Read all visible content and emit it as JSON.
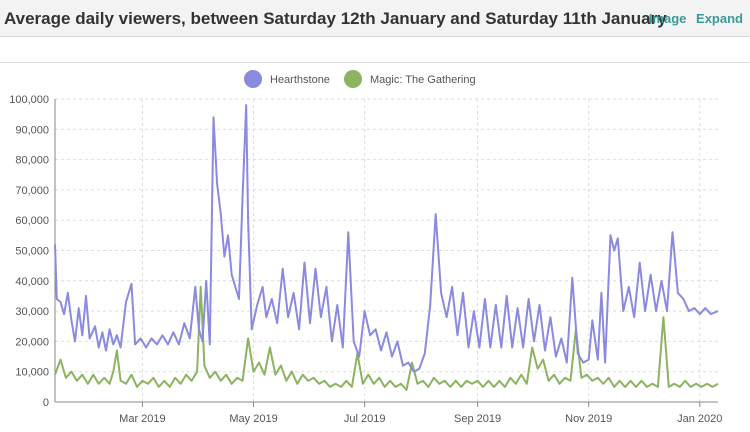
{
  "header": {
    "title": "Average daily viewers, between Saturday 12th January and Saturday 11th January",
    "image_link": "Image",
    "expand_link": "Expand"
  },
  "colors": {
    "hearthstone": "#8a8ade",
    "magic": "#8cb360",
    "grid": "#dddddd",
    "axis": "#888888"
  },
  "chart_data": {
    "type": "line",
    "title": "",
    "xlabel": "",
    "ylabel": "",
    "ylim": [
      0,
      100000
    ],
    "xlim": [
      "2019-01-12",
      "2020-01-11"
    ],
    "y_ticks": [
      0,
      10000,
      20000,
      30000,
      40000,
      50000,
      60000,
      70000,
      80000,
      90000,
      100000
    ],
    "y_tick_labels": [
      "0",
      "10,000",
      "20,000",
      "30,000",
      "40,000",
      "50,000",
      "60,000",
      "70,000",
      "80,000",
      "90,000",
      "100,000"
    ],
    "x_ticks": [
      "2019-03-01",
      "2019-05-01",
      "2019-07-01",
      "2019-09-01",
      "2019-11-01",
      "2020-01-01"
    ],
    "x_tick_labels": [
      "Mar 2019",
      "May 2019",
      "Jul 2019",
      "Sep 2019",
      "Nov 2019",
      "Jan 2020"
    ],
    "grid": true,
    "legend_position": "top-center",
    "series": [
      {
        "name": "Hearthstone",
        "points": [
          [
            "2019-01-12",
            52000
          ],
          [
            "2019-01-13",
            34000
          ],
          [
            "2019-01-15",
            33000
          ],
          [
            "2019-01-17",
            29000
          ],
          [
            "2019-01-19",
            36000
          ],
          [
            "2019-01-21",
            27000
          ],
          [
            "2019-01-23",
            20000
          ],
          [
            "2019-01-25",
            31000
          ],
          [
            "2019-01-27",
            22000
          ],
          [
            "2019-01-29",
            35000
          ],
          [
            "2019-01-31",
            21000
          ],
          [
            "2019-02-03",
            25000
          ],
          [
            "2019-02-05",
            18000
          ],
          [
            "2019-02-07",
            23000
          ],
          [
            "2019-02-09",
            17000
          ],
          [
            "2019-02-11",
            24000
          ],
          [
            "2019-02-13",
            19000
          ],
          [
            "2019-02-15",
            22000
          ],
          [
            "2019-02-17",
            18000
          ],
          [
            "2019-02-20",
            33000
          ],
          [
            "2019-02-23",
            39000
          ],
          [
            "2019-02-25",
            19000
          ],
          [
            "2019-02-28",
            21000
          ],
          [
            "2019-03-03",
            18000
          ],
          [
            "2019-03-06",
            21000
          ],
          [
            "2019-03-09",
            19000
          ],
          [
            "2019-03-12",
            22000
          ],
          [
            "2019-03-15",
            19000
          ],
          [
            "2019-03-18",
            23000
          ],
          [
            "2019-03-21",
            19000
          ],
          [
            "2019-03-24",
            26000
          ],
          [
            "2019-03-27",
            21000
          ],
          [
            "2019-03-30",
            38000
          ],
          [
            "2019-04-01",
            24000
          ],
          [
            "2019-04-03",
            20000
          ],
          [
            "2019-04-05",
            40000
          ],
          [
            "2019-04-07",
            19000
          ],
          [
            "2019-04-09",
            94000
          ],
          [
            "2019-04-11",
            72000
          ],
          [
            "2019-04-13",
            62000
          ],
          [
            "2019-04-15",
            48000
          ],
          [
            "2019-04-17",
            55000
          ],
          [
            "2019-04-19",
            42000
          ],
          [
            "2019-04-21",
            38000
          ],
          [
            "2019-04-23",
            34000
          ],
          [
            "2019-04-25",
            68000
          ],
          [
            "2019-04-27",
            98000
          ],
          [
            "2019-04-28",
            60000
          ],
          [
            "2019-04-30",
            24000
          ],
          [
            "2019-05-03",
            32000
          ],
          [
            "2019-05-06",
            38000
          ],
          [
            "2019-05-08",
            28000
          ],
          [
            "2019-05-11",
            34000
          ],
          [
            "2019-05-14",
            26000
          ],
          [
            "2019-05-17",
            44000
          ],
          [
            "2019-05-20",
            28000
          ],
          [
            "2019-05-23",
            36000
          ],
          [
            "2019-05-26",
            24000
          ],
          [
            "2019-05-29",
            46000
          ],
          [
            "2019-06-01",
            26000
          ],
          [
            "2019-06-04",
            44000
          ],
          [
            "2019-06-07",
            28000
          ],
          [
            "2019-06-10",
            38000
          ],
          [
            "2019-06-13",
            20000
          ],
          [
            "2019-06-16",
            32000
          ],
          [
            "2019-06-19",
            18000
          ],
          [
            "2019-06-22",
            56000
          ],
          [
            "2019-06-25",
            20000
          ],
          [
            "2019-06-28",
            15000
          ],
          [
            "2019-07-01",
            30000
          ],
          [
            "2019-07-04",
            22000
          ],
          [
            "2019-07-07",
            24000
          ],
          [
            "2019-07-10",
            17000
          ],
          [
            "2019-07-13",
            23000
          ],
          [
            "2019-07-16",
            15000
          ],
          [
            "2019-07-19",
            20000
          ],
          [
            "2019-07-22",
            12000
          ],
          [
            "2019-07-25",
            13000
          ],
          [
            "2019-07-28",
            10000
          ],
          [
            "2019-07-31",
            11000
          ],
          [
            "2019-08-03",
            16000
          ],
          [
            "2019-08-06",
            32000
          ],
          [
            "2019-08-09",
            62000
          ],
          [
            "2019-08-12",
            36000
          ],
          [
            "2019-08-15",
            28000
          ],
          [
            "2019-08-18",
            38000
          ],
          [
            "2019-08-21",
            22000
          ],
          [
            "2019-08-24",
            36000
          ],
          [
            "2019-08-27",
            18000
          ],
          [
            "2019-08-30",
            30000
          ],
          [
            "2019-09-02",
            18000
          ],
          [
            "2019-09-05",
            34000
          ],
          [
            "2019-09-08",
            18000
          ],
          [
            "2019-09-11",
            32000
          ],
          [
            "2019-09-14",
            18000
          ],
          [
            "2019-09-17",
            35000
          ],
          [
            "2019-09-20",
            18000
          ],
          [
            "2019-09-23",
            31000
          ],
          [
            "2019-09-26",
            18000
          ],
          [
            "2019-09-29",
            34000
          ],
          [
            "2019-10-02",
            20000
          ],
          [
            "2019-10-05",
            32000
          ],
          [
            "2019-10-08",
            17000
          ],
          [
            "2019-10-11",
            28000
          ],
          [
            "2019-10-14",
            15000
          ],
          [
            "2019-10-17",
            21000
          ],
          [
            "2019-10-20",
            13000
          ],
          [
            "2019-10-23",
            41000
          ],
          [
            "2019-10-26",
            16000
          ],
          [
            "2019-10-29",
            13000
          ],
          [
            "2019-11-01",
            14000
          ],
          [
            "2019-11-03",
            27000
          ],
          [
            "2019-11-06",
            14000
          ],
          [
            "2019-11-08",
            36000
          ],
          [
            "2019-11-10",
            13000
          ],
          [
            "2019-11-13",
            55000
          ],
          [
            "2019-11-15",
            50000
          ],
          [
            "2019-11-17",
            54000
          ],
          [
            "2019-11-20",
            30000
          ],
          [
            "2019-11-23",
            38000
          ],
          [
            "2019-11-26",
            28000
          ],
          [
            "2019-11-29",
            46000
          ],
          [
            "2019-12-02",
            30000
          ],
          [
            "2019-12-05",
            42000
          ],
          [
            "2019-12-08",
            30000
          ],
          [
            "2019-12-11",
            40000
          ],
          [
            "2019-12-14",
            30000
          ],
          [
            "2019-12-17",
            56000
          ],
          [
            "2019-12-20",
            36000
          ],
          [
            "2019-12-23",
            34000
          ],
          [
            "2019-12-26",
            30000
          ],
          [
            "2019-12-29",
            31000
          ],
          [
            "2020-01-01",
            29000
          ],
          [
            "2020-01-04",
            31000
          ],
          [
            "2020-01-07",
            29000
          ],
          [
            "2020-01-11",
            30000
          ]
        ]
      },
      {
        "name": "Magic: The Gathering",
        "points": [
          [
            "2019-01-12",
            9000
          ],
          [
            "2019-01-15",
            14000
          ],
          [
            "2019-01-18",
            8000
          ],
          [
            "2019-01-21",
            10000
          ],
          [
            "2019-01-24",
            7000
          ],
          [
            "2019-01-27",
            9000
          ],
          [
            "2019-01-30",
            6000
          ],
          [
            "2019-02-02",
            9000
          ],
          [
            "2019-02-05",
            6000
          ],
          [
            "2019-02-08",
            8000
          ],
          [
            "2019-02-11",
            6000
          ],
          [
            "2019-02-13",
            10000
          ],
          [
            "2019-02-15",
            17000
          ],
          [
            "2019-02-17",
            7000
          ],
          [
            "2019-02-20",
            6000
          ],
          [
            "2019-02-23",
            9000
          ],
          [
            "2019-02-26",
            5000
          ],
          [
            "2019-03-01",
            7000
          ],
          [
            "2019-03-04",
            6000
          ],
          [
            "2019-03-07",
            8000
          ],
          [
            "2019-03-10",
            5000
          ],
          [
            "2019-03-13",
            7000
          ],
          [
            "2019-03-16",
            5000
          ],
          [
            "2019-03-19",
            8000
          ],
          [
            "2019-03-22",
            6000
          ],
          [
            "2019-03-25",
            9000
          ],
          [
            "2019-03-28",
            7000
          ],
          [
            "2019-03-31",
            10000
          ],
          [
            "2019-04-02",
            38000
          ],
          [
            "2019-04-04",
            12000
          ],
          [
            "2019-04-07",
            8000
          ],
          [
            "2019-04-10",
            10000
          ],
          [
            "2019-04-13",
            7000
          ],
          [
            "2019-04-16",
            9000
          ],
          [
            "2019-04-19",
            6000
          ],
          [
            "2019-04-22",
            8000
          ],
          [
            "2019-04-25",
            7000
          ],
          [
            "2019-04-28",
            21000
          ],
          [
            "2019-05-01",
            10000
          ],
          [
            "2019-05-04",
            13000
          ],
          [
            "2019-05-07",
            9000
          ],
          [
            "2019-05-10",
            18000
          ],
          [
            "2019-05-13",
            9000
          ],
          [
            "2019-05-16",
            12000
          ],
          [
            "2019-05-19",
            7000
          ],
          [
            "2019-05-22",
            10000
          ],
          [
            "2019-05-25",
            6000
          ],
          [
            "2019-05-28",
            9000
          ],
          [
            "2019-05-31",
            7000
          ],
          [
            "2019-06-03",
            8000
          ],
          [
            "2019-06-06",
            6000
          ],
          [
            "2019-06-09",
            7000
          ],
          [
            "2019-06-12",
            5000
          ],
          [
            "2019-06-15",
            6000
          ],
          [
            "2019-06-18",
            5000
          ],
          [
            "2019-06-21",
            7000
          ],
          [
            "2019-06-24",
            5000
          ],
          [
            "2019-06-27",
            16000
          ],
          [
            "2019-06-30",
            6000
          ],
          [
            "2019-07-03",
            9000
          ],
          [
            "2019-07-06",
            6000
          ],
          [
            "2019-07-09",
            8000
          ],
          [
            "2019-07-12",
            5000
          ],
          [
            "2019-07-15",
            7000
          ],
          [
            "2019-07-18",
            5000
          ],
          [
            "2019-07-21",
            6000
          ],
          [
            "2019-07-24",
            4000
          ],
          [
            "2019-07-27",
            13000
          ],
          [
            "2019-07-30",
            6000
          ],
          [
            "2019-08-02",
            7000
          ],
          [
            "2019-08-05",
            5000
          ],
          [
            "2019-08-08",
            8000
          ],
          [
            "2019-08-11",
            6000
          ],
          [
            "2019-08-14",
            7000
          ],
          [
            "2019-08-17",
            5000
          ],
          [
            "2019-08-20",
            7000
          ],
          [
            "2019-08-23",
            5000
          ],
          [
            "2019-08-26",
            7000
          ],
          [
            "2019-08-29",
            6000
          ],
          [
            "2019-09-01",
            7000
          ],
          [
            "2019-09-04",
            5000
          ],
          [
            "2019-09-07",
            7000
          ],
          [
            "2019-09-10",
            5000
          ],
          [
            "2019-09-13",
            7000
          ],
          [
            "2019-09-16",
            5000
          ],
          [
            "2019-09-19",
            8000
          ],
          [
            "2019-09-22",
            6000
          ],
          [
            "2019-09-25",
            9000
          ],
          [
            "2019-09-28",
            6000
          ],
          [
            "2019-10-01",
            18000
          ],
          [
            "2019-10-04",
            11000
          ],
          [
            "2019-10-07",
            14000
          ],
          [
            "2019-10-10",
            7000
          ],
          [
            "2019-10-13",
            9000
          ],
          [
            "2019-10-16",
            6000
          ],
          [
            "2019-10-19",
            8000
          ],
          [
            "2019-10-22",
            7000
          ],
          [
            "2019-10-25",
            24000
          ],
          [
            "2019-10-28",
            8000
          ],
          [
            "2019-10-31",
            9000
          ],
          [
            "2019-11-03",
            7000
          ],
          [
            "2019-11-06",
            8000
          ],
          [
            "2019-11-09",
            6000
          ],
          [
            "2019-11-12",
            8000
          ],
          [
            "2019-11-15",
            5000
          ],
          [
            "2019-11-18",
            7000
          ],
          [
            "2019-11-21",
            5000
          ],
          [
            "2019-11-24",
            7000
          ],
          [
            "2019-11-27",
            5000
          ],
          [
            "2019-11-30",
            7000
          ],
          [
            "2019-12-03",
            5000
          ],
          [
            "2019-12-06",
            6000
          ],
          [
            "2019-12-09",
            5000
          ],
          [
            "2019-12-12",
            28000
          ],
          [
            "2019-12-15",
            5000
          ],
          [
            "2019-12-18",
            6000
          ],
          [
            "2019-12-21",
            5000
          ],
          [
            "2019-12-24",
            7000
          ],
          [
            "2019-12-27",
            5000
          ],
          [
            "2019-12-30",
            6000
          ],
          [
            "2020-01-02",
            5000
          ],
          [
            "2020-01-05",
            6000
          ],
          [
            "2020-01-08",
            5000
          ],
          [
            "2020-01-11",
            6000
          ]
        ]
      }
    ]
  }
}
